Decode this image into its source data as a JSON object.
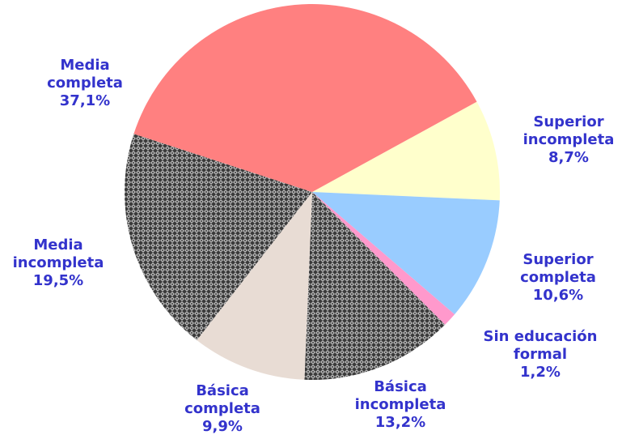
{
  "chart_data": {
    "type": "pie",
    "categories": [
      "Superior incompleta",
      "Superior completa",
      "Sin educación formal",
      "Básica incompleta",
      "Básica completa",
      "Media incompleta",
      "Media completa"
    ],
    "values": [
      8.7,
      10.6,
      1.2,
      13.2,
      9.9,
      19.5,
      37.1
    ],
    "value_labels": [
      "8,7%",
      "10,6%",
      "1,2%",
      "13,2%",
      "9,9%",
      "19,5%",
      "37,1%"
    ],
    "colors": [
      "#ffffcc",
      "#99ccff",
      "#ff99cc",
      "#808080",
      "#e8dcd4",
      "#808080",
      "#ff8080"
    ],
    "textured": [
      false,
      false,
      false,
      true,
      false,
      true,
      false
    ]
  }
}
